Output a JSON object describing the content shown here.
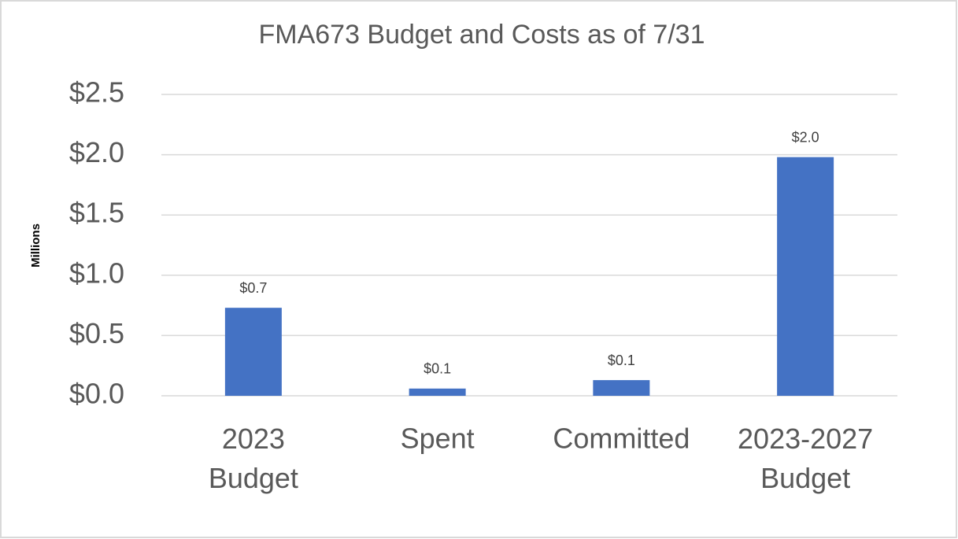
{
  "chart_data": {
    "type": "bar",
    "title": "FMA673 Budget and Costs as of 7/31",
    "y_label": "Millions",
    "categories": [
      "2023 Budget",
      "Spent",
      "Committed",
      "2023-2027 Budget"
    ],
    "values": [
      0.73,
      0.06,
      0.13,
      1.98
    ],
    "value_labels": [
      "$0.7",
      "$0.1",
      "$0.1",
      "$2.0"
    ],
    "color": "#4472c4",
    "ylim": [
      0,
      2.5
    ],
    "yticks": [
      {
        "value": 0,
        "label": "$0.0"
      },
      {
        "value": 0.5,
        "label": "$0.5"
      },
      {
        "value": 1,
        "label": "$1.0"
      },
      {
        "value": 1.5,
        "label": "$1.5"
      },
      {
        "value": 2,
        "label": "$2.0"
      },
      {
        "value": 2.5,
        "label": "$2.5"
      }
    ],
    "grid": true
  }
}
